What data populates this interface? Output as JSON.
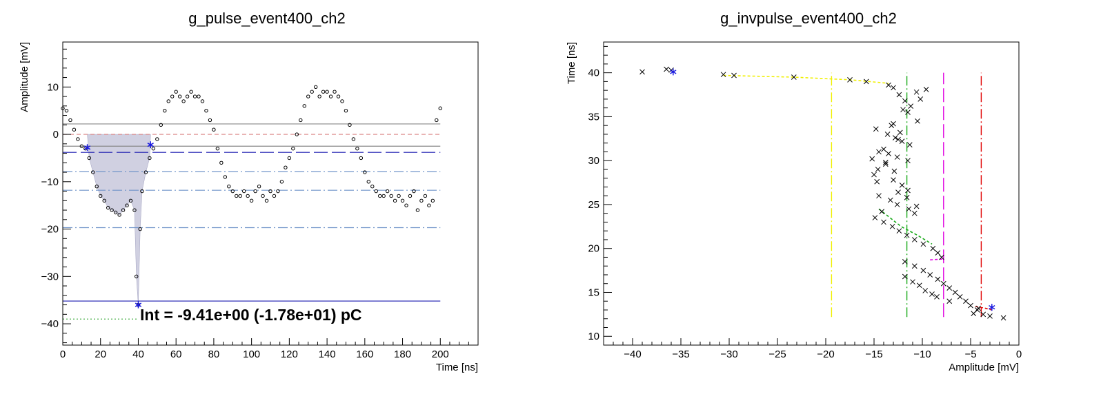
{
  "chart_data": [
    {
      "type": "scatter",
      "title": "g_pulse_event400_ch2",
      "xlabel": "Time [ns]",
      "ylabel": "Amplitude [mV]",
      "xlim": [
        0,
        220
      ],
      "ylim": [
        -44.5,
        19.5
      ],
      "xticks": [
        "0",
        "20",
        "40",
        "60",
        "80",
        "100",
        "120",
        "140",
        "160",
        "180",
        "200"
      ],
      "yticks": [
        "10",
        "0",
        "−10",
        "−20",
        "−30",
        "−40"
      ],
      "annotation": "Int = -9.41e+00 (-1.78e+01) pC",
      "series": [
        {
          "kind": "waveform-points",
          "x": [
            0,
            2,
            4,
            6,
            8,
            10,
            12,
            14,
            16,
            18,
            20,
            22,
            24,
            26,
            28,
            30,
            32,
            34,
            36,
            38,
            39,
            40,
            41,
            42,
            44,
            46,
            48,
            50,
            52,
            54,
            56,
            58,
            60,
            62,
            64,
            66,
            68,
            70,
            72,
            74,
            76,
            78,
            80,
            82,
            84,
            86,
            88,
            90,
            92,
            94,
            96,
            98,
            100,
            102,
            104,
            106,
            108,
            110,
            112,
            114,
            116,
            118,
            120,
            122,
            124,
            126,
            128,
            130,
            132,
            134,
            136,
            138,
            140,
            142,
            144,
            146,
            148,
            150,
            152,
            154,
            156,
            158,
            160,
            162,
            164,
            166,
            168,
            170,
            172,
            174,
            176,
            178,
            180,
            182,
            184,
            186,
            188,
            190,
            192,
            194,
            196,
            198,
            200
          ],
          "y": [
            5.5,
            5,
            3,
            1,
            -1,
            -2.5,
            -3,
            -5,
            -8,
            -11,
            -13,
            -14,
            -15.5,
            -16,
            -16.5,
            -17,
            -16,
            -15,
            -14,
            -16,
            -30,
            -36,
            -20,
            -12,
            -8,
            -5,
            -3,
            -1,
            2,
            5,
            7,
            8,
            9,
            8,
            7,
            8,
            9,
            8,
            8,
            7,
            5,
            3,
            1,
            -3,
            -6,
            -9,
            -11,
            -12,
            -13,
            -13,
            -12,
            -13,
            -14,
            -12,
            -11,
            -13,
            -14,
            -12,
            -13,
            -12,
            -10,
            -7,
            -5,
            -3,
            0,
            3,
            6,
            8,
            9,
            10,
            8,
            9,
            9,
            8,
            9,
            8,
            7,
            5,
            2,
            -1,
            -3,
            -5,
            -8,
            -10,
            -11,
            -12,
            -13,
            -13,
            -12,
            -13,
            -14,
            -13,
            -14,
            -15,
            -13,
            -12,
            -16,
            -14,
            -13,
            -15,
            -14,
            3,
            5.5
          ]
        }
      ],
      "markers": [
        {
          "x": 13,
          "y": -2.8
        },
        {
          "x": 40,
          "y": -36
        },
        {
          "x": 46.5,
          "y": -2.2
        }
      ],
      "hlines": [
        {
          "y": 2.2,
          "style": "solid",
          "color": "#888888",
          "x": [
            0,
            200
          ]
        },
        {
          "y": 0,
          "style": "dashed",
          "color": "#d98080",
          "x": [
            0,
            200
          ]
        },
        {
          "y": -2.5,
          "style": "solid",
          "color": "#888888",
          "x": [
            0,
            200
          ]
        },
        {
          "y": -3.8,
          "style": "longdash",
          "color": "#1a1ab0",
          "x": [
            0,
            200
          ]
        },
        {
          "y": -7.9,
          "style": "dashdot",
          "color": "#6f93c9",
          "x": [
            0,
            200
          ]
        },
        {
          "y": -11.8,
          "style": "dashdot",
          "color": "#6f93c9",
          "x": [
            0,
            200
          ]
        },
        {
          "y": -19.7,
          "style": "dashdot",
          "color": "#6f93c9",
          "x": [
            0,
            200
          ]
        },
        {
          "y": -35.2,
          "style": "solid",
          "color": "#1a1ab0",
          "x": [
            0,
            200
          ]
        },
        {
          "y": -39,
          "style": "dotted",
          "color": "#39a839",
          "x": [
            0,
            40
          ]
        }
      ],
      "shaded_region": {
        "x_from": 13,
        "x_to": 46.5,
        "baseline": 0,
        "color": "#c8c8dc"
      }
    },
    {
      "type": "scatter",
      "title": "g_invpulse_event400_ch2",
      "xlabel": "Amplitude [mV]",
      "ylabel": "Time [ns]",
      "xlim": [
        -43,
        0
      ],
      "ylim": [
        9,
        43.5
      ],
      "xticks": [
        "−40",
        "−35",
        "−30",
        "−25",
        "−20",
        "−15",
        "−10",
        "−5",
        "0"
      ],
      "yticks": [
        "10",
        "15",
        "20",
        "25",
        "30",
        "35",
        "40"
      ],
      "series": [
        {
          "kind": "crosses",
          "x": [
            -39,
            -36.5,
            -36,
            -30.6,
            -29.5,
            -23.3,
            -17.5,
            -15.8,
            -13.5,
            -13,
            -12.4,
            -11.8,
            -11.2,
            -10.6,
            -10.2,
            -9.6,
            -12,
            -11.5,
            -10.5,
            -13.2,
            -14.8,
            -13.6,
            -12.8,
            -12.1,
            -11.3,
            -14,
            -13.5,
            -12.6,
            -11.5,
            -13.8,
            -14.6,
            -15,
            -13,
            -12.1,
            -11.5,
            -14.5,
            -13.3,
            -12.6,
            -11.4,
            -10.8,
            -14.9,
            -14,
            -13.1,
            -12.4,
            -11.6,
            -10.8,
            -9.9,
            -8.9,
            -8.4,
            -8,
            -11.8,
            -10.8,
            -9.9,
            -9.2,
            -8.4,
            -7.8,
            -7.2,
            -6.6,
            -6.1,
            -5.5,
            -5,
            -4.3,
            -3.7,
            -3,
            -4.7,
            -4.2,
            -11.8,
            -11,
            -10.3,
            -9.7,
            -9,
            -8.5,
            -7.2,
            -1.6,
            -12.3,
            -14.5,
            -13.8,
            -12.9,
            -14.7,
            -12.5,
            -11.6,
            -10.6,
            -14.2,
            -15.2,
            -13,
            -12.5
          ],
          "y": [
            40.1,
            40.4,
            40.3,
            39.8,
            39.7,
            39.5,
            39.2,
            39,
            38.6,
            38.3,
            37.5,
            36.8,
            36.2,
            37.8,
            37,
            38.1,
            35.8,
            35.5,
            34.5,
            34,
            33.6,
            33,
            32.6,
            32.2,
            31.8,
            31.3,
            30.8,
            30.4,
            30,
            29.6,
            29,
            28.4,
            27.8,
            27.2,
            26.6,
            26,
            25.5,
            25,
            24.5,
            24,
            23.5,
            23,
            22.5,
            22,
            21.5,
            21,
            20.5,
            20,
            19.5,
            19,
            18.5,
            18,
            17.5,
            17,
            16.5,
            16,
            15.5,
            15,
            14.5,
            14,
            13.5,
            13,
            12.5,
            12.3,
            12.6,
            13.2,
            16.8,
            16.2,
            15.8,
            15.2,
            14.8,
            14.5,
            14,
            12.1,
            33.2,
            31,
            29.8,
            28.8,
            27.6,
            26.4,
            25.8,
            24.8,
            24.2,
            30.2,
            34.2,
            32.4
          ]
        }
      ],
      "markers": [
        {
          "x": -35.8,
          "y": 40.1
        },
        {
          "x": -2.8,
          "y": 13.3
        }
      ],
      "fit_segments": [
        {
          "color": "#f0f000",
          "points": [
            [
              -30.6,
              39.7
            ],
            [
              -23.3,
              39.5
            ],
            [
              -17.5,
              39.2
            ],
            [
              -13.5,
              38.8
            ]
          ]
        },
        {
          "color": "#1aaa1a",
          "points": [
            [
              -14.5,
              24.5
            ],
            [
              -12.2,
              22.5
            ],
            [
              -10.5,
              21.5
            ],
            [
              -9,
              20.5
            ]
          ]
        },
        {
          "color": "#e000e0",
          "points": [
            [
              -9.2,
              18.7
            ],
            [
              -7.8,
              18.8
            ]
          ]
        },
        {
          "color": "#e00000",
          "points": [
            [
              -4.5,
              13.4
            ],
            [
              -3.5,
              13.2
            ],
            [
              -2.8,
              13
            ]
          ]
        }
      ],
      "vlines": [
        {
          "x": -19.4,
          "style": "dashdot",
          "color": "#f0f000",
          "y": [
            12.2,
            40
          ]
        },
        {
          "x": -11.6,
          "style": "dashdot",
          "color": "#1aaa1a",
          "y": [
            12.2,
            40
          ]
        },
        {
          "x": -7.8,
          "style": "longdash",
          "color": "#e000e0",
          "y": [
            12.2,
            40
          ]
        },
        {
          "x": -3.9,
          "style": "dashdot",
          "color": "#e00000",
          "y": [
            12.2,
            40
          ]
        }
      ]
    }
  ]
}
